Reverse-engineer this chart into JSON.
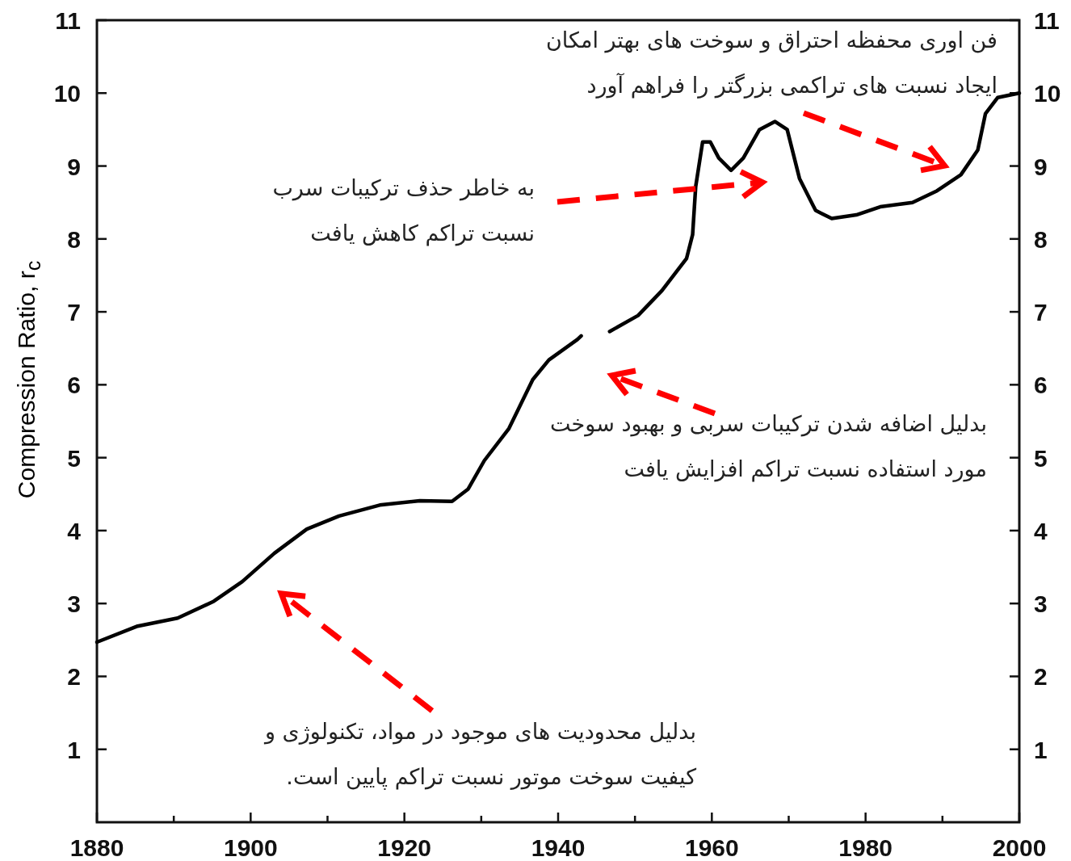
{
  "chart_data": {
    "type": "line",
    "ylabel": "Compression Ratio, r$_{c}$",
    "x": [
      1880,
      1885.3,
      1890.5,
      1895.2,
      1898.9,
      1903.1,
      1907.3,
      1911.5,
      1916.8,
      1922,
      1926.2,
      1928.3,
      1930.4,
      1933.6,
      1936.7,
      1938.8,
      1942.5,
      1943,
      1945,
      1946.7,
      1950.4,
      1953.5,
      1956.7,
      1957.5,
      1957.9,
      1958.8,
      1959.8,
      1960.9,
      1962.5,
      1964.1,
      1966.2,
      1968.2,
      1969.8,
      1971.4,
      1973.5,
      1975.6,
      1978.8,
      1981.9,
      1986.1,
      1989.3,
      1992.4,
      1994.6,
      1995.6,
      1997.2,
      2000
    ],
    "series": [
      {
        "color": "#000000",
        "values": [
          2.47,
          2.69,
          2.8,
          3.03,
          3.3,
          3.69,
          4.02,
          4.2,
          4.35,
          4.41,
          4.4,
          4.57,
          4.96,
          5.4,
          6.07,
          6.34,
          6.62,
          6.67,
          null,
          6.73,
          6.95,
          7.29,
          7.73,
          8.06,
          8.72,
          9.33,
          9.33,
          9.11,
          8.94,
          9.11,
          9.5,
          9.61,
          9.5,
          8.83,
          8.39,
          8.28,
          8.33,
          8.44,
          8.5,
          8.66,
          8.88,
          9.22,
          9.72,
          9.94,
          10.0
        ]
      }
    ],
    "xlim": [
      1880,
      2000
    ],
    "xticks": [
      1880,
      {
        "value": 1890,
        "label": null
      },
      1900,
      {
        "value": 1910,
        "label": null
      },
      1920,
      {
        "value": 1930,
        "label": null
      },
      1940,
      {
        "value": 1950,
        "label": null
      },
      1960,
      {
        "value": 1970,
        "label": null
      },
      1980,
      {
        "value": 1990,
        "label": null
      },
      2000
    ],
    "ylim": [
      0,
      11
    ],
    "yticks": [
      1,
      2,
      3,
      4,
      5,
      6,
      7,
      8,
      9,
      10,
      11
    ],
    "y2lim": [
      0,
      11
    ],
    "y2ticks": [
      1,
      2,
      3,
      4,
      5,
      6,
      7,
      8,
      9,
      10,
      11
    ],
    "annotations": [
      "فن اوری محفظه احتراق و سوخت های بهتر امکان ایجاد نسبت های تراکمی بزرگتر را فراهم آورد",
      "به خاطر حذف ترکیبات سرب نسبت تراکم کاهش یافت",
      "بدلیل اضافه شدن ترکیبات سربی و بهبود سوخت مورد استفاده نسبت تراکم افزایش یافت",
      "بدلیل محدودیت های موجود در مواد، تکنولوژی و کیفیت سوخت موتور نسبت تراکم پایین است."
    ]
  }
}
